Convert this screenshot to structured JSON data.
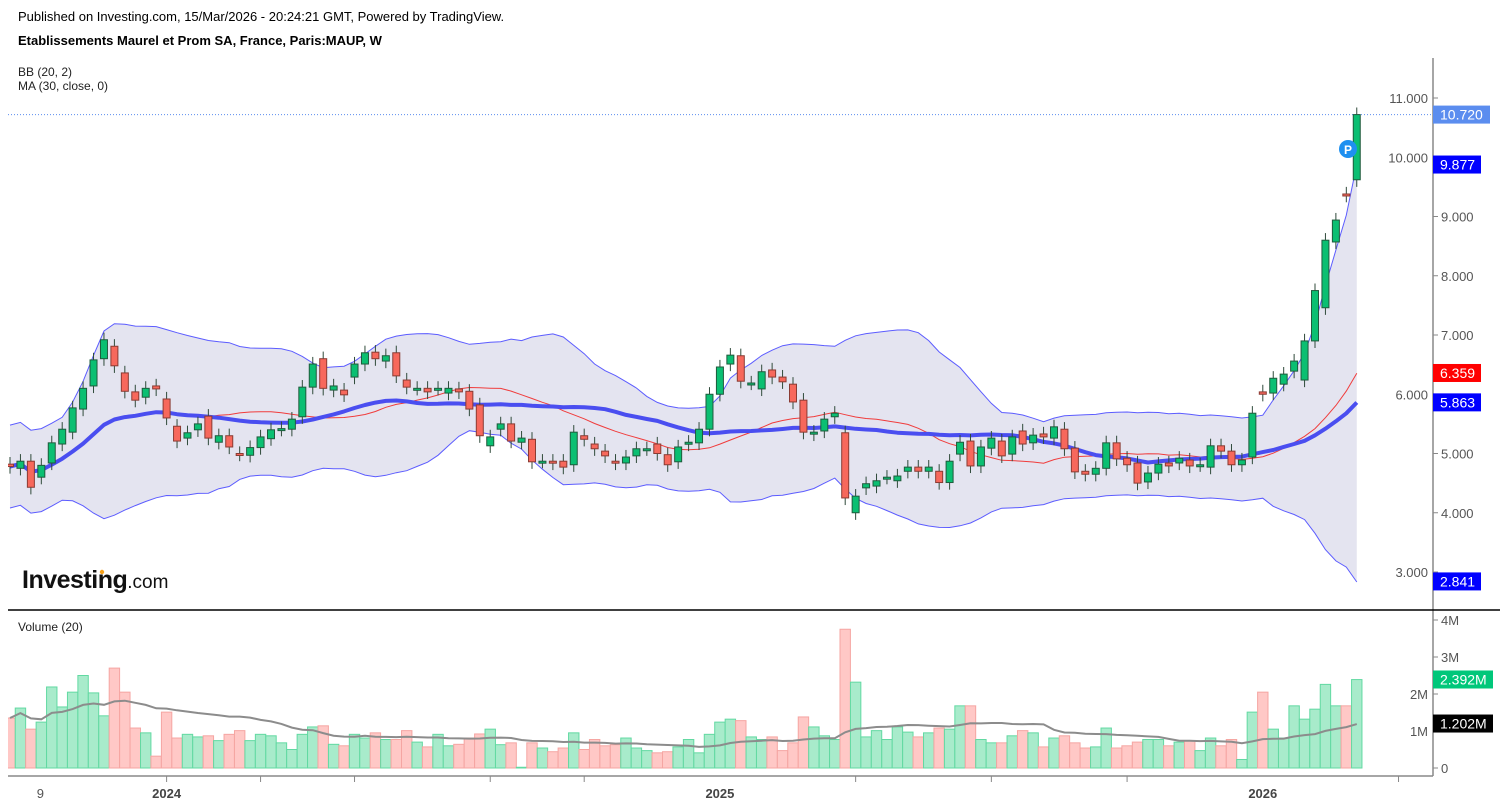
{
  "header": {
    "published": "Published on Investing.com, 15/Mar/2026 - 20:24:21 GMT, Powered by TradingView.",
    "title": "Etablissements Maurel et Prom SA, France, Paris:MAUP, W"
  },
  "indicators": {
    "bb": "BB (20, 2)",
    "ma": "MA (30, close, 0)",
    "volume": "Volume (20)"
  },
  "logo": {
    "brand": "Investing",
    "suffix": ".com"
  },
  "marker": {
    "label": "P"
  },
  "colors": {
    "up": "#0bbf72",
    "down": "#f7685c",
    "up_border": "#1f5b3c",
    "down_border": "#8a3b33",
    "vol_up": "#a8ebcb",
    "vol_down": "#ffc8c6",
    "bb_fill": "#e4e4f0",
    "bb_band": "#5c5cff",
    "bb_basis": "#f03c3c",
    "ma30": "#4a4ef0",
    "vol_ma": "#8c8c8c"
  },
  "chart_data": {
    "type": "candlestick",
    "title": "Etablissements Maurel et Prom SA, France, Paris:MAUP, W",
    "price_axis": {
      "ticks": [
        "3.000",
        "4.000",
        "5.000",
        "6.000",
        "7.000",
        "8.000",
        "9.000",
        "10.000",
        "11.000"
      ],
      "range": [
        2.6,
        11.7
      ]
    },
    "volume_axis": {
      "ticks": [
        "0",
        "1M",
        "2M",
        "3M",
        "4M"
      ],
      "range": [
        0,
        4.2
      ],
      "unit": "M"
    },
    "x_ticks": [
      {
        "label": "9",
        "bold": false,
        "index": 3
      },
      {
        "label": "",
        "index": 15
      },
      {
        "label": "2024",
        "bold": true,
        "index": 15
      },
      {
        "label": "",
        "index": 24
      },
      {
        "label": "",
        "index": 33
      },
      {
        "label": "",
        "index": 46
      },
      {
        "label": "",
        "index": 55
      },
      {
        "label": "2025",
        "bold": true,
        "index": 68
      },
      {
        "label": "",
        "index": 81
      },
      {
        "label": "",
        "index": 94
      },
      {
        "label": "",
        "index": 107
      },
      {
        "label": "2026",
        "bold": true,
        "index": 120
      },
      {
        "label": "",
        "index": 133
      }
    ],
    "candles_oc": [
      [
        4.82,
        4.78
      ],
      [
        4.75,
        4.87
      ],
      [
        4.87,
        4.43
      ],
      [
        4.6,
        4.8
      ],
      [
        4.84,
        5.18
      ],
      [
        5.16,
        5.41
      ],
      [
        5.36,
        5.77
      ],
      [
        5.75,
        6.1
      ],
      [
        6.14,
        6.58
      ],
      [
        6.6,
        6.92
      ],
      [
        6.81,
        6.48
      ],
      [
        6.36,
        6.05
      ],
      [
        6.04,
        5.9
      ],
      [
        5.95,
        6.1
      ],
      [
        6.14,
        6.09
      ],
      [
        5.92,
        5.6
      ],
      [
        5.46,
        5.21
      ],
      [
        5.26,
        5.35
      ],
      [
        5.4,
        5.5
      ],
      [
        5.63,
        5.26
      ],
      [
        5.19,
        5.3
      ],
      [
        5.3,
        5.11
      ],
      [
        5.0,
        4.99
      ],
      [
        4.97,
        5.1
      ],
      [
        5.1,
        5.28
      ],
      [
        5.25,
        5.4
      ],
      [
        5.41,
        5.42
      ],
      [
        5.41,
        5.58
      ],
      [
        5.62,
        6.12
      ],
      [
        6.12,
        6.51
      ],
      [
        6.6,
        6.1
      ],
      [
        6.07,
        6.14
      ],
      [
        6.07,
        5.99
      ],
      [
        6.29,
        6.51
      ],
      [
        6.51,
        6.7
      ],
      [
        6.71,
        6.6
      ],
      [
        6.56,
        6.65
      ],
      [
        6.7,
        6.31
      ],
      [
        6.24,
        6.12
      ],
      [
        6.1,
        6.1
      ],
      [
        6.1,
        6.04
      ],
      [
        6.1,
        6.1
      ],
      [
        6.02,
        6.1
      ],
      [
        6.09,
        6.04
      ],
      [
        6.05,
        5.75
      ],
      [
        5.82,
        5.3
      ],
      [
        5.13,
        5.28
      ],
      [
        5.41,
        5.5
      ],
      [
        5.5,
        5.21
      ],
      [
        5.19,
        5.26
      ],
      [
        5.24,
        4.86
      ],
      [
        4.87,
        4.87
      ],
      [
        4.87,
        4.84
      ],
      [
        4.87,
        4.77
      ],
      [
        4.81,
        5.36
      ],
      [
        5.3,
        5.24
      ],
      [
        5.16,
        5.08
      ],
      [
        5.04,
        4.96
      ],
      [
        4.87,
        4.84
      ],
      [
        4.84,
        4.94
      ],
      [
        4.96,
        5.08
      ],
      [
        5.08,
        5.08
      ],
      [
        5.16,
        5.0
      ],
      [
        4.98,
        4.81
      ],
      [
        4.86,
        5.11
      ],
      [
        5.16,
        5.19
      ],
      [
        5.18,
        5.41
      ],
      [
        5.41,
        6.0
      ],
      [
        6.0,
        6.46
      ],
      [
        6.51,
        6.66
      ],
      [
        6.65,
        6.22
      ],
      [
        6.19,
        6.19
      ],
      [
        6.09,
        6.38
      ],
      [
        6.41,
        6.29
      ],
      [
        6.29,
        6.21
      ],
      [
        6.17,
        5.87
      ],
      [
        5.9,
        5.36
      ],
      [
        5.33,
        5.36
      ],
      [
        5.38,
        5.58
      ],
      [
        5.62,
        5.68
      ],
      [
        5.35,
        4.25
      ],
      [
        4.0,
        4.28
      ],
      [
        4.42,
        4.49
      ],
      [
        4.45,
        4.54
      ],
      [
        4.6,
        4.6
      ],
      [
        4.54,
        4.62
      ],
      [
        4.7,
        4.77
      ],
      [
        4.77,
        4.7
      ],
      [
        4.7,
        4.77
      ],
      [
        4.7,
        4.51
      ],
      [
        4.51,
        4.87
      ],
      [
        4.99,
        5.19
      ],
      [
        5.21,
        4.79
      ],
      [
        4.79,
        5.11
      ],
      [
        5.09,
        5.26
      ],
      [
        5.21,
        4.96
      ],
      [
        4.99,
        5.28
      ],
      [
        5.38,
        5.16
      ],
      [
        5.18,
        5.31
      ],
      [
        5.33,
        5.28
      ],
      [
        5.26,
        5.45
      ],
      [
        5.41,
        5.08
      ],
      [
        5.09,
        4.69
      ],
      [
        4.7,
        4.65
      ],
      [
        4.65,
        4.75
      ],
      [
        4.75,
        5.18
      ],
      [
        5.18,
        4.91
      ],
      [
        4.92,
        4.81
      ],
      [
        4.84,
        4.5
      ],
      [
        4.52,
        4.67
      ],
      [
        4.67,
        4.82
      ],
      [
        4.84,
        4.79
      ],
      [
        4.84,
        4.92
      ],
      [
        4.89,
        4.79
      ],
      [
        4.81,
        4.81
      ],
      [
        4.77,
        5.13
      ],
      [
        5.13,
        5.04
      ],
      [
        5.04,
        4.81
      ],
      [
        4.81,
        4.89
      ],
      [
        4.94,
        5.68
      ],
      [
        6.04,
        6.0
      ],
      [
        6.02,
        6.27
      ],
      [
        6.17,
        6.34
      ],
      [
        6.39,
        6.56
      ],
      [
        6.24,
        6.9
      ],
      [
        6.9,
        7.75
      ],
      [
        7.46,
        8.6
      ],
      [
        8.57,
        8.94
      ],
      [
        9.38,
        9.36
      ],
      [
        9.62,
        10.72
      ]
    ],
    "volumes_m": [
      1.35,
      1.62,
      1.05,
      1.24,
      2.19,
      1.65,
      2.05,
      2.5,
      2.03,
      1.41,
      2.7,
      2.05,
      1.08,
      0.95,
      0.32,
      1.51,
      0.81,
      0.91,
      0.84,
      0.87,
      0.74,
      0.91,
      1.01,
      0.74,
      0.91,
      0.87,
      0.68,
      0.5,
      0.91,
      1.11,
      1.14,
      0.64,
      0.6,
      0.91,
      0.81,
      0.95,
      0.77,
      0.77,
      1.01,
      0.7,
      0.57,
      0.91,
      0.6,
      0.64,
      0.81,
      0.92,
      1.05,
      0.63,
      0.68,
      0.02,
      0.68,
      0.54,
      0.44,
      0.54,
      0.95,
      0.5,
      0.77,
      0.6,
      0.63,
      0.81,
      0.54,
      0.47,
      0.41,
      0.44,
      0.57,
      0.77,
      0.41,
      0.91,
      1.24,
      1.32,
      1.28,
      0.84,
      0.77,
      0.84,
      0.47,
      0.68,
      1.38,
      1.11,
      0.87,
      0.77,
      3.75,
      2.32,
      0.84,
      1.01,
      0.77,
      1.11,
      0.97,
      0.84,
      0.95,
      1.08,
      1.05,
      1.68,
      1.68,
      0.77,
      0.68,
      0.68,
      0.87,
      1.01,
      0.95,
      0.57,
      0.81,
      0.87,
      0.68,
      0.54,
      0.57,
      1.08,
      0.54,
      0.6,
      0.7,
      0.77,
      0.77,
      0.6,
      0.7,
      0.74,
      0.47,
      0.81,
      0.6,
      0.77,
      0.23,
      1.51,
      2.05,
      1.05,
      0.81,
      1.68,
      1.32,
      1.59,
      2.26,
      1.68,
      1.68,
      2.39
    ],
    "last_labels": {
      "last_price": {
        "text": "10.720",
        "value": 10.72,
        "color": "#5b8def"
      },
      "bb_upper": {
        "text": "9.877",
        "value": 9.877,
        "color": "#0000ff"
      },
      "bb_basis": {
        "text": "6.359",
        "value": 6.359,
        "color": "#ff0000"
      },
      "ma30": {
        "text": "5.863",
        "value": 5.863,
        "color": "#0000ff"
      },
      "bb_lower": {
        "text": "2.841",
        "value": 2.841,
        "color": "#0000ff"
      },
      "volume": {
        "text": "2.392M",
        "value": 2.392,
        "color": "#00c77a"
      },
      "volume_ma": {
        "text": "1.202M",
        "value": 1.202,
        "color": "#000000"
      }
    }
  }
}
